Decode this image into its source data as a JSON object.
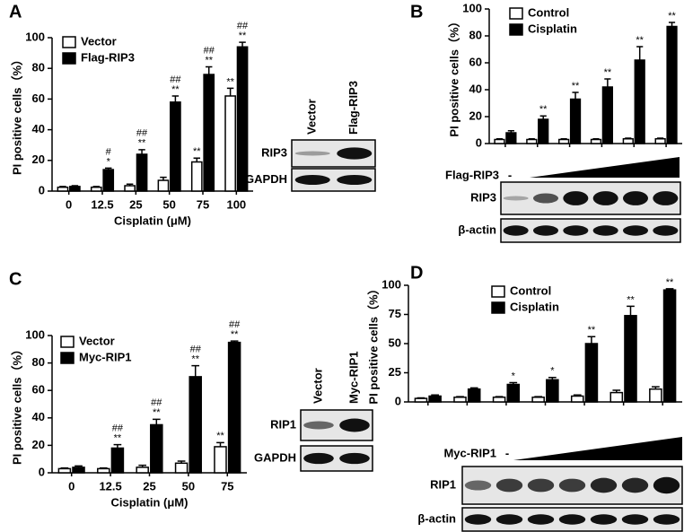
{
  "chart_data": [
    {
      "type": "bar",
      "panel": "A",
      "y_label": "PI positive cells（%）",
      "x_label": "Cisplatin (μM)",
      "categories": [
        "0",
        "12.5",
        "25",
        "50",
        "75",
        "100"
      ],
      "ylim": [
        0,
        100
      ],
      "yticks": [
        0,
        20,
        40,
        60,
        80,
        100
      ],
      "legend": "upper left",
      "series": [
        {
          "name": "Vector",
          "color": "#ffffff",
          "values": [
            2.5,
            2.5,
            3.5,
            7,
            19,
            62
          ],
          "errors": [
            0.5,
            0.5,
            1,
            2,
            2.5,
            5
          ],
          "annotations": [
            null,
            null,
            null,
            null,
            [
              "**"
            ],
            [
              "**"
            ]
          ]
        },
        {
          "name": "Flag-RIP3",
          "color": "#000000",
          "values": [
            3,
            14,
            24,
            58,
            76,
            94
          ],
          "errors": [
            0.5,
            1,
            3,
            4,
            5,
            3
          ],
          "annotations": [
            null,
            [
              "#",
              "*"
            ],
            [
              "##",
              "**"
            ],
            [
              "##",
              "**"
            ],
            [
              "##",
              "**"
            ],
            [
              "##",
              "**"
            ]
          ]
        }
      ],
      "blot": {
        "columns": [
          "Vector",
          "Flag-RIP3"
        ],
        "rows": [
          "RIP3",
          "GAPDH"
        ]
      }
    },
    {
      "type": "bar",
      "panel": "B",
      "y_label": "PI positive cells（%）",
      "categories": [
        null,
        null,
        null,
        null,
        null,
        null
      ],
      "ylim": [
        0,
        100
      ],
      "yticks": [
        0,
        20,
        40,
        60,
        80,
        100
      ],
      "legend": "upper left",
      "series": [
        {
          "name": "Control",
          "color": "#ffffff",
          "values": [
            3,
            3,
            3,
            3,
            3.5,
            3.5
          ],
          "errors": [
            0.5,
            0.5,
            0.5,
            0.5,
            0.5,
            0.5
          ],
          "annotations": [
            null,
            null,
            null,
            null,
            null,
            null
          ]
        },
        {
          "name": "Cisplatin",
          "color": "#000000",
          "values": [
            8,
            18,
            33,
            42,
            62,
            87
          ],
          "errors": [
            1.5,
            2.5,
            5,
            6,
            10,
            3
          ],
          "annotations": [
            null,
            [
              "**"
            ],
            [
              "**"
            ],
            [
              "**"
            ],
            [
              "**"
            ],
            [
              "**"
            ]
          ]
        }
      ],
      "blot": {
        "treatment": "Flag-RIP3",
        "minus": "-",
        "rows": [
          "RIP3",
          "β-actin"
        ]
      }
    },
    {
      "type": "bar",
      "panel": "C",
      "y_label": "PI positive cells（%）",
      "x_label": "Cisplatin (μM)",
      "categories": [
        "0",
        "12.5",
        "25",
        "50",
        "75"
      ],
      "ylim": [
        0,
        100
      ],
      "yticks": [
        0,
        20,
        40,
        60,
        80,
        100
      ],
      "legend": "upper left",
      "series": [
        {
          "name": "Vector",
          "color": "#ffffff",
          "values": [
            3,
            3,
            4,
            7,
            19
          ],
          "errors": [
            0.5,
            0.5,
            1.5,
            1.5,
            3
          ],
          "annotations": [
            null,
            null,
            null,
            null,
            [
              "**"
            ]
          ]
        },
        {
          "name": "Myc-RIP1",
          "color": "#000000",
          "values": [
            4,
            18,
            35,
            70,
            95
          ],
          "errors": [
            1,
            2.5,
            4,
            8,
            1
          ],
          "annotations": [
            null,
            [
              "##",
              "**"
            ],
            [
              "##",
              "**"
            ],
            [
              "##",
              "**"
            ],
            [
              "##",
              "**"
            ]
          ]
        }
      ],
      "blot": {
        "columns": [
          "Vector",
          "Myc-RIP1"
        ],
        "rows": [
          "RIP1",
          "GAPDH"
        ]
      }
    },
    {
      "type": "bar",
      "panel": "D",
      "y_label": "PI positive cells（%）",
      "categories": [
        null,
        null,
        null,
        null,
        null,
        null,
        null
      ],
      "ylim": [
        0,
        100
      ],
      "yticks": [
        0,
        25,
        50,
        75,
        100
      ],
      "legend": "upper left",
      "series": [
        {
          "name": "Control",
          "color": "#ffffff",
          "values": [
            3,
            4,
            4,
            4,
            5,
            8,
            11
          ],
          "errors": [
            0.5,
            0.5,
            0.5,
            0.5,
            1,
            2,
            2
          ],
          "annotations": [
            null,
            null,
            null,
            null,
            null,
            null,
            null
          ]
        },
        {
          "name": "Cisplatin",
          "color": "#000000",
          "values": [
            5,
            11,
            15,
            19,
            50,
            74,
            96
          ],
          "errors": [
            1,
            1,
            1.5,
            2,
            6,
            8,
            1
          ],
          "annotations": [
            null,
            null,
            [
              "*"
            ],
            [
              "*"
            ],
            [
              "**"
            ],
            [
              "**"
            ],
            [
              "**"
            ]
          ]
        }
      ],
      "blot": {
        "treatment": "Myc-RIP1",
        "minus": "-",
        "rows": [
          "RIP1",
          "β-actin"
        ]
      }
    }
  ]
}
